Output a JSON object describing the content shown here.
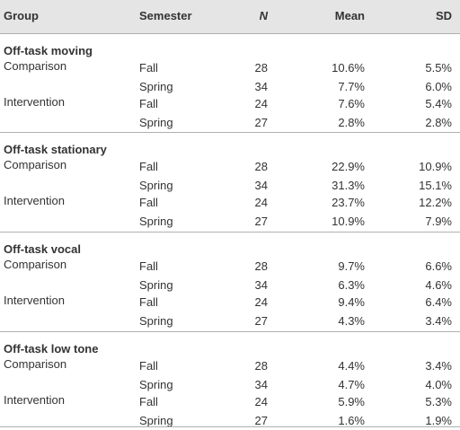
{
  "table": {
    "header": [
      "Group",
      "Semester",
      "N",
      "Mean",
      "SD"
    ],
    "sections": [
      {
        "title": "Off-task moving",
        "rows": [
          {
            "group": "Comparison",
            "semester": "Fall",
            "n": 28,
            "mean": "10.6%",
            "sd": "5.5%"
          },
          {
            "semester": "Spring",
            "n": 34,
            "mean": "7.7%",
            "sd": "6.0%"
          },
          {
            "group": "Intervention",
            "semester": "Fall",
            "n": 24,
            "mean": "7.6%",
            "sd": "5.4%"
          },
          {
            "semester": "Spring",
            "n": 27,
            "mean": "2.8%",
            "sd": "2.8%"
          }
        ]
      },
      {
        "title": "Off-task stationary",
        "rows": [
          {
            "group": "Comparison",
            "semester": "Fall",
            "n": 28,
            "mean": "22.9%",
            "sd": "10.9%"
          },
          {
            "semester": "Spring",
            "n": 34,
            "mean": "31.3%",
            "sd": "15.1%"
          },
          {
            "group": "Intervention",
            "semester": "Fall",
            "n": 24,
            "mean": "23.7%",
            "sd": "12.2%"
          },
          {
            "semester": "Spring",
            "n": 27,
            "mean": "10.9%",
            "sd": "7.9%"
          }
        ]
      },
      {
        "title": "Off-task vocal",
        "rows": [
          {
            "group": "Comparison",
            "semester": "Fall",
            "n": 28,
            "mean": "9.7%",
            "sd": "6.6%"
          },
          {
            "semester": "Spring",
            "n": 34,
            "mean": "6.3%",
            "sd": "4.6%"
          },
          {
            "group": "Intervention",
            "semester": "Fall",
            "n": 24,
            "mean": "9.4%",
            "sd": "6.4%"
          },
          {
            "semester": "Spring",
            "n": 27,
            "mean": "4.3%",
            "sd": "3.4%"
          }
        ]
      },
      {
        "title": "Off-task low tone",
        "rows": [
          {
            "group": "Comparison",
            "semester": "Fall",
            "n": 28,
            "mean": "4.4%",
            "sd": "3.4%"
          },
          {
            "semester": "Spring",
            "n": 34,
            "mean": "4.7%",
            "sd": "4.0%"
          },
          {
            "group": "Intervention",
            "semester": "Fall",
            "n": 24,
            "mean": "5.9%",
            "sd": "5.3%"
          },
          {
            "semester": "Spring",
            "n": 27,
            "mean": "1.6%",
            "sd": "1.9%"
          }
        ]
      }
    ]
  }
}
